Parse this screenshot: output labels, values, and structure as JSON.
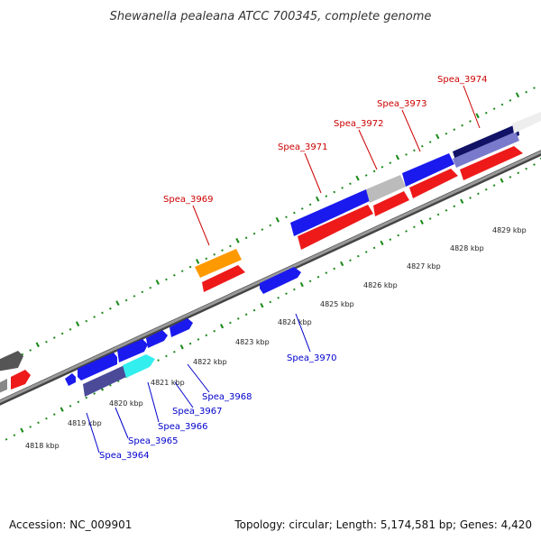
{
  "title": "Shewanella pealeana ATCC 700345, complete genome",
  "accession_text": "Accession: NC_009901",
  "topology_text": "Topology: circular; Length: 5,174,581 bp; Genes: 4,420",
  "colors": {
    "forward_label": "#cc0000",
    "reverse_label": "#0000cc",
    "backbone": "#888888",
    "ticks": "#1a8a1a",
    "blue": "#1a1aee",
    "red": "#ee1a1a",
    "orange": "#ff9900",
    "cyan": "#33eeee",
    "gray": "#bbbbbb",
    "darkgray": "#666666",
    "navy": "#111166",
    "slate": "#4a4a99"
  },
  "scale": {
    "labels": [
      "4818 kbp",
      "4819 kbp",
      "4820 kbp",
      "4821 kbp",
      "4822 kbp",
      "4823 kbp",
      "4824 kbp",
      "4825 kbp",
      "4826 kbp",
      "4827 kbp",
      "4828 kbp",
      "4829 kbp"
    ]
  },
  "forward_labels": [
    "Spea_3969",
    "Spea_3971",
    "Spea_3972",
    "Spea_3973",
    "Spea_3974"
  ],
  "reverse_labels": [
    "Spea_3964",
    "Spea_3965",
    "Spea_3966",
    "Spea_3967",
    "Spea_3968",
    "Spea_3970"
  ]
}
